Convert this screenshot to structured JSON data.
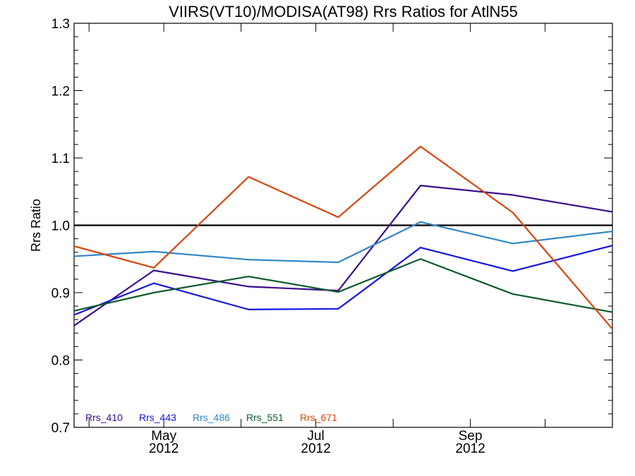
{
  "chart_data": {
    "type": "line",
    "title": "VIIRS(VT10)/MODISA(AT98)  Rrs Ratios for AtlN55",
    "xlabel": "",
    "ylabel": "Rrs Ratio",
    "x_ticks": [
      {
        "month": "May",
        "year": "2012",
        "date": "2012-05-01"
      },
      {
        "month": "Jul",
        "year": "2012",
        "date": "2012-07-01"
      },
      {
        "month": "Sep",
        "year": "2012",
        "date": "2012-09-01"
      }
    ],
    "xlim": [
      "2012-03-26",
      "2012-10-28"
    ],
    "ylim": [
      0.7,
      1.3
    ],
    "yticks": [
      "0.7",
      "0.8",
      "0.9",
      "1.0",
      "1.1",
      "1.2",
      "1.3"
    ],
    "reference_line": {
      "y": 1.0,
      "color": "#000000"
    },
    "x": [
      "2012-03-26",
      "2012-04-27",
      "2012-06-04",
      "2012-07-10",
      "2012-08-12",
      "2012-09-18",
      "2012-10-28"
    ],
    "series": [
      {
        "name": "Rrs_410",
        "color": "#3a0c8c",
        "values": [
          0.851,
          0.933,
          0.909,
          0.903,
          1.059,
          1.045,
          1.02
        ]
      },
      {
        "name": "Rrs_443",
        "color": "#1414e6",
        "values": [
          0.867,
          0.914,
          0.875,
          0.876,
          0.967,
          0.932,
          0.97
        ]
      },
      {
        "name": "Rrs_486",
        "color": "#2f86c8",
        "values": [
          0.954,
          0.961,
          0.949,
          0.945,
          1.005,
          0.973,
          0.991
        ]
      },
      {
        "name": "Rrs_551",
        "color": "#0d5a2d",
        "values": [
          0.873,
          0.9,
          0.924,
          0.901,
          0.95,
          0.898,
          0.871
        ]
      },
      {
        "name": "Rrs_671",
        "color": "#d7460a",
        "values": [
          0.969,
          0.937,
          1.072,
          1.012,
          1.117,
          1.019,
          0.846
        ]
      }
    ],
    "grid": false,
    "legend_placement": "bottom-left"
  }
}
